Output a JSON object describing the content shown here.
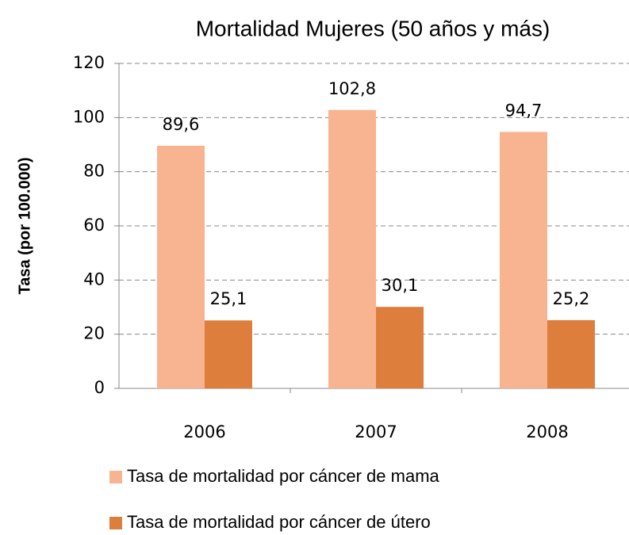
{
  "chart_data": {
    "type": "bar",
    "title": "Mortalidad Mujeres (50 años y más)",
    "y_label": "Tasa (por 100.000)",
    "categories": [
      "2006",
      "2007",
      "2008"
    ],
    "series": [
      {
        "name": "Tasa de mortalidad por cáncer de mama",
        "color": "#f8b390",
        "values": [
          89.6,
          102.8,
          94.7
        ],
        "value_labels": [
          "89,6",
          "102,8",
          "94,7"
        ]
      },
      {
        "name": "Tasa de mortalidad por cáncer de útero",
        "color": "#dd7e3d",
        "values": [
          25.1,
          30.1,
          25.2
        ],
        "value_labels": [
          "25,1",
          "30,1",
          "25,2"
        ]
      }
    ],
    "ylim": [
      0,
      120
    ],
    "yticks": [
      0,
      20,
      40,
      60,
      80,
      100,
      120
    ],
    "grid": true,
    "legend": "bottom"
  }
}
